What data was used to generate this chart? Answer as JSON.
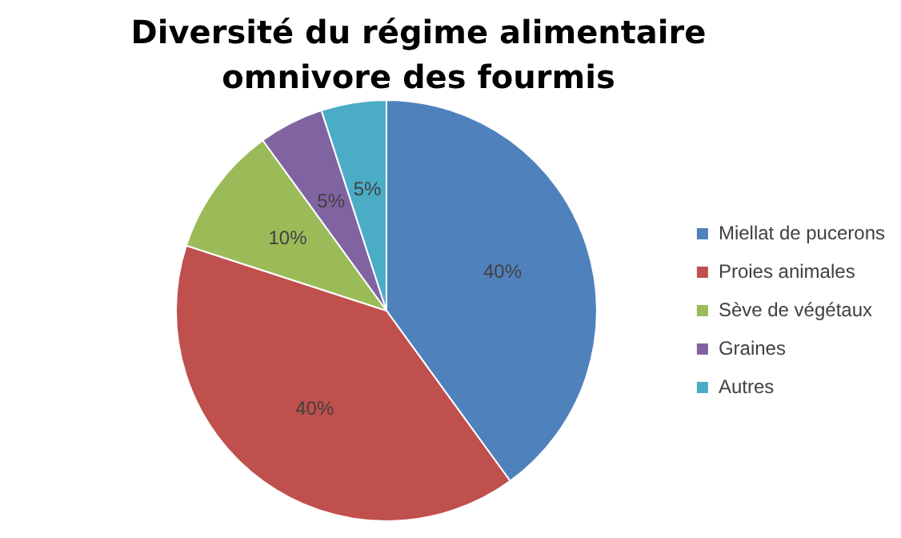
{
  "chart_data": {
    "type": "pie",
    "title": "Diversité du régime alimentaire omnivore des fourmis",
    "categories": [
      "Miellat de pucerons",
      "Proies animales",
      "Sève de végétaux",
      "Graines",
      "Autres"
    ],
    "values": [
      40,
      40,
      10,
      5,
      5
    ],
    "colors": [
      "#4f81bd",
      "#c0504d",
      "#9bbb59",
      "#8064a2",
      "#4bacc6"
    ],
    "value_labels": [
      "40%",
      "40%",
      "10%",
      "5%",
      "5%"
    ],
    "legend": "right"
  }
}
